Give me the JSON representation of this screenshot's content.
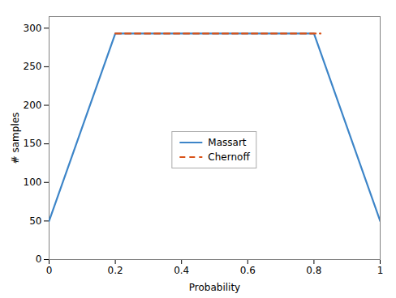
{
  "chart_data": {
    "type": "line",
    "xlabel": "Probability",
    "ylabel": "# samples",
    "xlim": [
      0,
      1.0
    ],
    "ylim": [
      0,
      315
    ],
    "xticks": [
      0,
      0.2,
      0.4,
      0.6,
      0.8,
      1.0
    ],
    "yticks": [
      0,
      50,
      100,
      150,
      200,
      250,
      300
    ],
    "grid": false,
    "legend": "center",
    "series": [
      {
        "name": "Massart",
        "color": "#3d85c8",
        "line_style": "solid",
        "x": [
          0.0,
          0.2,
          0.8,
          1.0
        ],
        "values": [
          50.0,
          293.0,
          293.0,
          50.0
        ]
      },
      {
        "name": "Chernoff",
        "color": "#d95319",
        "line_style": "dashed",
        "x": [
          0.2,
          0.82
        ],
        "values": [
          293.0,
          293.0
        ]
      }
    ]
  }
}
